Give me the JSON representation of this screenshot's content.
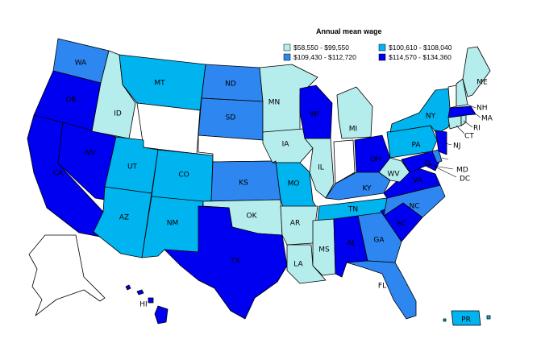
{
  "legend": {
    "title": "Annual mean wage",
    "bins": [
      {
        "label": "$58,550 - $99,550",
        "color": "#b5ecec"
      },
      {
        "label": "$100,610 - $108,040",
        "color": "#00b4f0"
      },
      {
        "label": "$109,430 - $112,720",
        "color": "#2e86f0"
      },
      {
        "label": "$114,570 - $134,360",
        "color": "#0000f0"
      }
    ]
  },
  "no_data_color": "#ffffff",
  "states": [
    {
      "abbr": "WA",
      "bin": 2
    },
    {
      "abbr": "OR",
      "bin": 3
    },
    {
      "abbr": "CA",
      "bin": 3
    },
    {
      "abbr": "NV",
      "bin": 3
    },
    {
      "abbr": "ID",
      "bin": 0
    },
    {
      "abbr": "MT",
      "bin": 1
    },
    {
      "abbr": "WY",
      "bin": null
    },
    {
      "abbr": "UT",
      "bin": 1
    },
    {
      "abbr": "AZ",
      "bin": 1
    },
    {
      "abbr": "CO",
      "bin": 1
    },
    {
      "abbr": "NM",
      "bin": 1
    },
    {
      "abbr": "ND",
      "bin": 2
    },
    {
      "abbr": "SD",
      "bin": 2
    },
    {
      "abbr": "NE",
      "bin": null
    },
    {
      "abbr": "KS",
      "bin": 2
    },
    {
      "abbr": "OK",
      "bin": 0
    },
    {
      "abbr": "TX",
      "bin": 3
    },
    {
      "abbr": "MN",
      "bin": 0
    },
    {
      "abbr": "IA",
      "bin": 0
    },
    {
      "abbr": "MO",
      "bin": 1
    },
    {
      "abbr": "AR",
      "bin": 0
    },
    {
      "abbr": "LA",
      "bin": 0
    },
    {
      "abbr": "WI",
      "bin": 3
    },
    {
      "abbr": "IL",
      "bin": 0
    },
    {
      "abbr": "MI",
      "bin": 0
    },
    {
      "abbr": "IN",
      "bin": null
    },
    {
      "abbr": "OH",
      "bin": 3
    },
    {
      "abbr": "KY",
      "bin": 2
    },
    {
      "abbr": "TN",
      "bin": 1
    },
    {
      "abbr": "MS",
      "bin": 0
    },
    {
      "abbr": "AL",
      "bin": 3
    },
    {
      "abbr": "GA",
      "bin": 2
    },
    {
      "abbr": "FL",
      "bin": 2
    },
    {
      "abbr": "SC",
      "bin": 3
    },
    {
      "abbr": "NC",
      "bin": 2
    },
    {
      "abbr": "VA",
      "bin": 3
    },
    {
      "abbr": "WV",
      "bin": 0
    },
    {
      "abbr": "PA",
      "bin": 1
    },
    {
      "abbr": "NY",
      "bin": 1
    },
    {
      "abbr": "MD",
      "bin": 3
    },
    {
      "abbr": "DE",
      "bin": 2
    },
    {
      "abbr": "NJ",
      "bin": 3
    },
    {
      "abbr": "CT",
      "bin": 0
    },
    {
      "abbr": "RI",
      "bin": 0
    },
    {
      "abbr": "MA",
      "bin": 3
    },
    {
      "abbr": "VT",
      "bin": null
    },
    {
      "abbr": "NH",
      "bin": 0
    },
    {
      "abbr": "ME",
      "bin": 0
    },
    {
      "abbr": "DC",
      "bin": 3
    },
    {
      "abbr": "AK",
      "bin": null
    },
    {
      "abbr": "HI",
      "bin": 3
    },
    {
      "abbr": "PR",
      "bin": 1
    }
  ]
}
